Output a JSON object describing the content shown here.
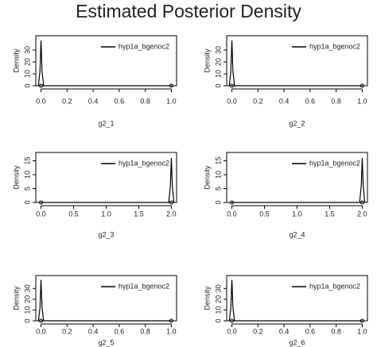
{
  "title": "Estimated Posterior Density",
  "chart_data": [
    {
      "type": "line",
      "xlabel": "g2_1",
      "ylabel": "Density",
      "xlim": [
        -0.04,
        1.04
      ],
      "ylim": [
        0,
        42
      ],
      "xticks": [
        {
          "value": 0,
          "label": "0.0"
        },
        0.2,
        0.4,
        0.6,
        0.8,
        {
          "value": 1,
          "label": "1.0"
        }
      ],
      "yticks": [
        0,
        10,
        20,
        30
      ],
      "series": [
        {
          "name": "hyp1a_bgenoc2",
          "color": "#000000",
          "x": [
            -0.02,
            -0.008,
            0,
            0.008,
            0.02,
            1
          ],
          "values": [
            0,
            12,
            38,
            12,
            0,
            0
          ]
        }
      ],
      "points": {
        "x": [
          0,
          1
        ],
        "values": [
          0,
          0
        ]
      }
    },
    {
      "type": "line",
      "xlabel": "g2_2",
      "ylabel": "Density",
      "xlim": [
        -0.04,
        1.04
      ],
      "ylim": [
        0,
        42
      ],
      "xticks": [
        {
          "value": 0,
          "label": "0.0"
        },
        0.2,
        0.4,
        0.6,
        0.8,
        {
          "value": 1,
          "label": "1.0"
        }
      ],
      "yticks": [
        0,
        10,
        20,
        30
      ],
      "series": [
        {
          "name": "hyp1a_bgenoc2",
          "color": "#000000",
          "x": [
            -0.02,
            -0.008,
            0,
            0.008,
            0.02,
            1
          ],
          "values": [
            0,
            12,
            38,
            12,
            0,
            0
          ]
        }
      ],
      "points": {
        "x": [
          0,
          1
        ],
        "values": [
          0,
          0
        ]
      }
    },
    {
      "type": "line",
      "xlabel": "g2_3",
      "ylabel": "Density",
      "xlim": [
        -0.08,
        2.08
      ],
      "ylim": [
        0,
        18
      ],
      "xticks": [
        {
          "value": 0,
          "label": "0.0"
        },
        0.5,
        {
          "value": 1,
          "label": "1.0"
        },
        1.5,
        {
          "value": 2,
          "label": "2.0"
        }
      ],
      "yticks": [
        0,
        5,
        10,
        15
      ],
      "series": [
        {
          "name": "hyp1a_bgenoc2",
          "color": "#000000",
          "x": [
            0,
            1.96,
            1.985,
            2,
            2.015,
            2.04
          ],
          "values": [
            0,
            0,
            6,
            16,
            6,
            0
          ]
        }
      ],
      "points": {
        "x": [
          0,
          2
        ],
        "values": [
          0,
          0
        ]
      }
    },
    {
      "type": "line",
      "xlabel": "g2_4",
      "ylabel": "Density",
      "xlim": [
        -0.08,
        2.08
      ],
      "ylim": [
        0,
        18
      ],
      "xticks": [
        {
          "value": 0,
          "label": "0.0"
        },
        0.5,
        {
          "value": 1,
          "label": "1.0"
        },
        1.5,
        {
          "value": 2,
          "label": "2.0"
        }
      ],
      "yticks": [
        0,
        5,
        10,
        15
      ],
      "series": [
        {
          "name": "hyp1a_bgenoc2",
          "color": "#000000",
          "x": [
            0,
            1.96,
            1.985,
            2,
            2.015,
            2.04
          ],
          "values": [
            0,
            0,
            6,
            16,
            6,
            0
          ]
        }
      ],
      "points": {
        "x": [
          0,
          2
        ],
        "values": [
          0,
          0
        ]
      }
    },
    {
      "type": "line",
      "xlabel": "g2_5",
      "ylabel": "Density",
      "xlim": [
        -0.04,
        1.04
      ],
      "ylim": [
        0,
        42
      ],
      "xticks": [
        {
          "value": 0,
          "label": "0.0"
        },
        0.2,
        0.4,
        0.6,
        0.8,
        {
          "value": 1,
          "label": "1.0"
        }
      ],
      "yticks": [
        0,
        10,
        20,
        30
      ],
      "series": [
        {
          "name": "hyp1a_bgenoc2",
          "color": "#000000",
          "x": [
            -0.02,
            -0.008,
            0,
            0.008,
            0.02,
            1
          ],
          "values": [
            0,
            12,
            38,
            12,
            0,
            0
          ]
        }
      ],
      "points": {
        "x": [
          0,
          1
        ],
        "values": [
          0,
          0
        ]
      }
    },
    {
      "type": "line",
      "xlabel": "g2_6",
      "ylabel": "Density",
      "xlim": [
        -0.04,
        1.04
      ],
      "ylim": [
        0,
        42
      ],
      "xticks": [
        {
          "value": 0,
          "label": "0.0"
        },
        0.2,
        0.4,
        0.6,
        0.8,
        {
          "value": 1,
          "label": "1.0"
        }
      ],
      "yticks": [
        0,
        10,
        20,
        30
      ],
      "series": [
        {
          "name": "hyp1a_bgenoc2",
          "color": "#000000",
          "x": [
            -0.02,
            -0.008,
            0,
            0.008,
            0.02,
            1
          ],
          "values": [
            0,
            12,
            38,
            12,
            0,
            0
          ]
        }
      ],
      "points": {
        "x": [
          0,
          1
        ],
        "values": [
          0,
          0
        ]
      }
    }
  ]
}
